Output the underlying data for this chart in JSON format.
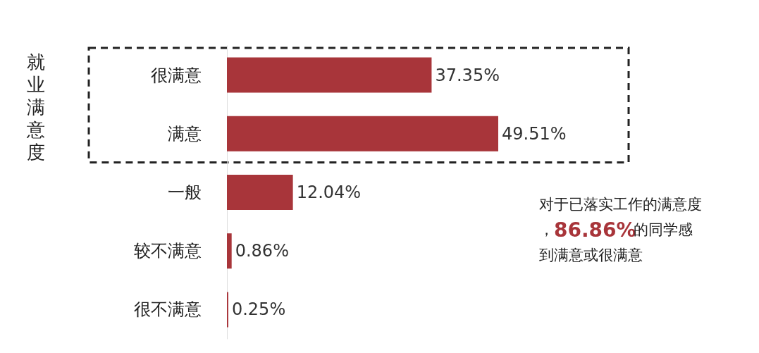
{
  "chart_data": {
    "type": "bar",
    "orientation": "horizontal",
    "ylabel": "就业满意度",
    "categories": [
      "很满意",
      "满意",
      "一般",
      "较不满意",
      "很不满意"
    ],
    "values": [
      37.35,
      49.51,
      12.04,
      0.86,
      0.25
    ],
    "value_labels": [
      "37.35%",
      "49.51%",
      "12.04%",
      "0.86%",
      "0.25%"
    ],
    "color": "#a8353a",
    "grid": false,
    "annotations": [
      "对于已落实工作的满意度，86.86%的同学感到满意或很满意"
    ]
  }
}
